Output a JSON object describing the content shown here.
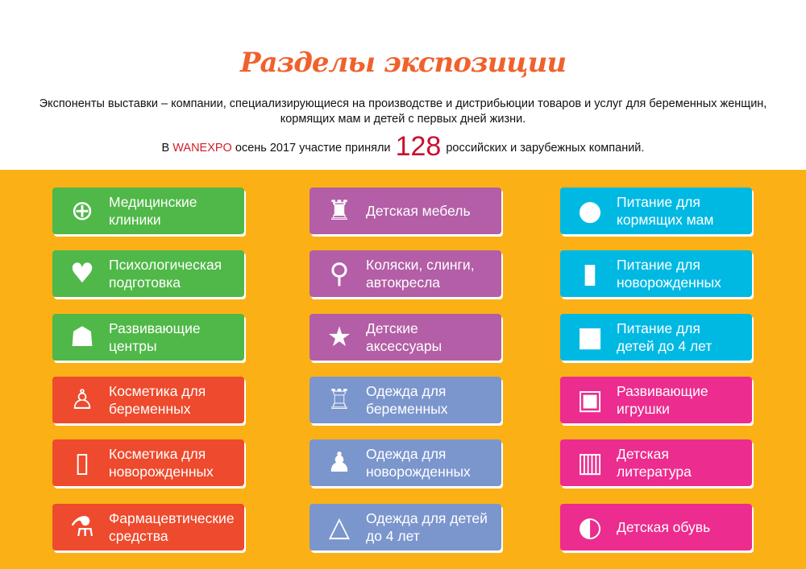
{
  "header": {
    "title": "Разделы экспозиции",
    "description": "Экспоненты выставки – компании, специализирующиеся на производстве и дистрибьюции товаров и услуг для беременных женщин, кормящих мам и детей с первых дней жизни.",
    "stat_prefix": "В",
    "brand": "WANEXPO",
    "stat_middle": "осень 2017 участие приняли",
    "count": "128",
    "stat_suffix": "российских и зарубежных компаний."
  },
  "colors": {
    "background": "#fbb116",
    "title": "#f0612c",
    "green": "#4fb848",
    "purple": "#b35ea6",
    "cyan": "#00b9e3",
    "red": "#ee4a2d",
    "blue": "#7b96cd",
    "pink": "#ec2c8e"
  },
  "columns": [
    {
      "color": "#4fb848",
      "items": [
        {
          "label": "Медицинские\nклиники",
          "icon": "medical-kit-icon"
        },
        {
          "label": "Психологическая\nподготовка",
          "icon": "family-hands-icon"
        },
        {
          "label": "Развивающие\nцентры",
          "icon": "reading-person-icon"
        }
      ]
    },
    {
      "color": "#b35ea6",
      "items": [
        {
          "label": "Детская мебель",
          "icon": "child-furniture-icon"
        },
        {
          "label": "Коляски, слинги,\nавтокресла",
          "icon": "stroller-icon"
        },
        {
          "label": "Детские\nаксессуары",
          "icon": "crib-mobile-icon"
        }
      ]
    },
    {
      "color": "#00b9e3",
      "items": [
        {
          "label": "Питание для\nкормящих мам",
          "icon": "fruits-icon"
        },
        {
          "label": "Питание для\nноворожденных",
          "icon": "baby-bottle-icon"
        },
        {
          "label": "Питание для\nдетей до 4 лет",
          "icon": "baby-food-jar-icon"
        }
      ]
    },
    {
      "color": "#ee4a2d",
      "items": [
        {
          "label": "Косметика для\nбеременных",
          "icon": "perfume-icon"
        },
        {
          "label": "Косметика для\nноворожденных",
          "icon": "lotion-bottles-icon"
        },
        {
          "label": "Фармацевтические\nсредства",
          "icon": "pharmacy-flasks-icon"
        }
      ]
    },
    {
      "color": "#7b96cd",
      "items": [
        {
          "label": "Одежда для\nбеременных",
          "icon": "sweater-icon"
        },
        {
          "label": "Одежда для\nноворожденных",
          "icon": "baby-bodysuit-icon"
        },
        {
          "label": "Одежда для детей\nдо 4 лет",
          "icon": "dress-hanger-icon"
        }
      ]
    },
    {
      "color": "#ec2c8e",
      "items": [
        {
          "label": "Развивающие\nигрушки",
          "icon": "abc-blocks-icon"
        },
        {
          "label": "Детская\nлитература",
          "icon": "open-book-icon"
        },
        {
          "label": "Детская обувь",
          "icon": "baby-shoes-icon"
        }
      ]
    }
  ]
}
